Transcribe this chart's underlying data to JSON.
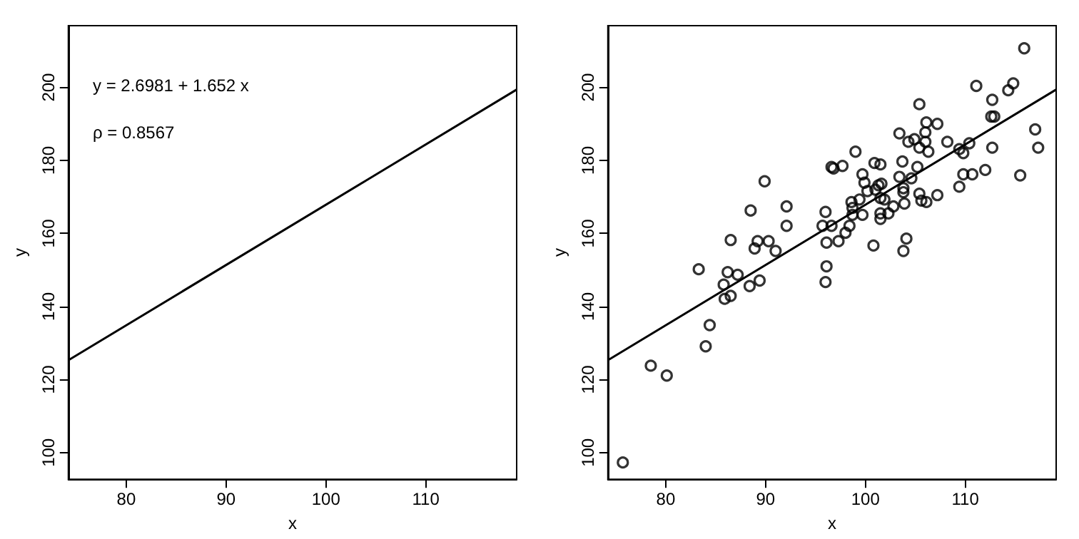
{
  "chart_data": [
    {
      "type": "line",
      "xlabel": "x",
      "ylabel": "y",
      "xlim": [
        74.2,
        119.1
      ],
      "ylim": [
        92.7,
        216.9
      ],
      "xticks": [
        80,
        90,
        100,
        110
      ],
      "yticks": [
        100,
        120,
        140,
        160,
        180,
        200
      ],
      "grid": false,
      "annotations": [
        "y = 2.6981 + 1.652 x",
        "ρ = 0.8567"
      ],
      "series": [
        {
          "color": "#000000",
          "marker": "none",
          "x": [
            74.2,
            119.1
          ],
          "values": [
            125.3,
            199.4
          ]
        }
      ]
    },
    {
      "type": "scatter",
      "xlabel": "x",
      "ylabel": "y",
      "xlim": [
        74.2,
        119.1
      ],
      "ylim": [
        92.7,
        216.9
      ],
      "xticks": [
        80,
        90,
        100,
        110
      ],
      "yticks": [
        100,
        120,
        140,
        160,
        180,
        200
      ],
      "grid": false,
      "series": [
        {
          "color": "#000000",
          "marker": "circle",
          "x": [
            75.7,
            78.5,
            80.1,
            83.3,
            84.0,
            84.4,
            85.8,
            85.9,
            86.5,
            86.5,
            86.2,
            87.2,
            88.5,
            88.4,
            88.9,
            89.2,
            89.4,
            89.9,
            90.3,
            91.0,
            92.1,
            92.1,
            95.7,
            96.6,
            96.1,
            96.1,
            96.0,
            97.3,
            96.0,
            96.8,
            115.9,
            111.1,
            114.3,
            114.8,
            112.7,
            105.4,
            112.6,
            112.9,
            117.0,
            117.3,
            112.7,
            115.5,
            112.0,
            109.8,
            110.7,
            109.4,
            107.2,
            106.1,
            106.0,
            103.4,
            108.2,
            104.3,
            104.9,
            105.4,
            106.3,
            106.0,
            109.4,
            110.4,
            109.8,
            99.0,
            96.6,
            97.7,
            100.9,
            101.5,
            103.7,
            105.2,
            99.7,
            99.9,
            103.4,
            104.6,
            100.2,
            101.3,
            101.6,
            101.0,
            103.8,
            103.8,
            101.5,
            101.9,
            105.4,
            105.6,
            106.1,
            107.2,
            98.6,
            98.7,
            99.4,
            102.8,
            103.9,
            102.3,
            101.5,
            101.5,
            99.7,
            98.7,
            98.4,
            98.0,
            100.8,
            104.1,
            103.8
          ],
          "values": [
            97.3,
            123.8,
            121.1,
            150.2,
            129.1,
            134.9,
            146.0,
            142.1,
            142.9,
            158.2,
            149.4,
            148.7,
            166.3,
            145.6,
            155.9,
            157.9,
            147.1,
            174.3,
            157.9,
            155.2,
            167.4,
            162.1,
            162.1,
            162.1,
            157.5,
            151.0,
            146.7,
            157.9,
            165.9,
            177.8,
            210.7,
            200.4,
            199.2,
            201.1,
            196.6,
            195.4,
            192.0,
            192.0,
            188.5,
            183.5,
            183.5,
            175.9,
            177.4,
            176.2,
            176.2,
            172.8,
            190.0,
            190.4,
            187.7,
            187.4,
            185.1,
            185.1,
            185.8,
            183.5,
            182.4,
            185.1,
            183.1,
            184.7,
            182.0,
            182.4,
            178.2,
            178.5,
            179.3,
            178.9,
            179.7,
            178.2,
            176.2,
            173.9,
            175.5,
            175.1,
            171.6,
            173.2,
            173.6,
            172.0,
            172.4,
            171.3,
            169.7,
            169.3,
            170.9,
            169.0,
            168.6,
            170.5,
            168.6,
            167.0,
            169.3,
            167.4,
            168.2,
            165.5,
            165.5,
            164.0,
            165.1,
            165.1,
            162.1,
            160.2,
            156.7,
            158.6,
            155.2
          ]
        },
        {
          "type": "line",
          "color": "#000000",
          "marker": "none",
          "x": [
            74.2,
            119.1
          ],
          "values": [
            125.3,
            199.4
          ]
        }
      ]
    }
  ]
}
